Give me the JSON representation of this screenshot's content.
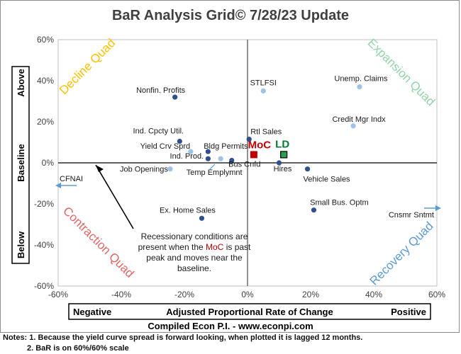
{
  "chart_data": {
    "type": "scatter",
    "title": "BaR Analysis Grid© 7/28/23 Update",
    "xlim": [
      -0.6,
      0.6
    ],
    "ylim": [
      -0.6,
      0.6
    ],
    "x_ticks": [
      "-60%",
      "-40%",
      "-20%",
      "0%",
      "20%",
      "40%",
      "60%"
    ],
    "y_ticks": [
      "60%",
      "40%",
      "20%",
      "0%",
      "-20%",
      "-40%",
      "-60%"
    ],
    "x_axis_box": {
      "left": "Negative",
      "center": "Adjusted Proportional Rate of Change",
      "right": "Positive"
    },
    "y_axis_box": {
      "top": "Above",
      "middle": "Baseline",
      "bottom": "Below"
    },
    "quadrants": {
      "top_left": "Decline Quad",
      "top_right": "Expansion Quad",
      "bottom_left": "Contraction Quad",
      "bottom_right": "Recovery Quad"
    },
    "points": [
      {
        "label": "STLFSI",
        "x": 0.05,
        "y": 0.35
      },
      {
        "label": "Unemp. Claims",
        "x": 0.355,
        "y": 0.37
      },
      {
        "label": "Nonfin. Profits",
        "x": -0.23,
        "y": 0.32
      },
      {
        "label": "Credit Mgr Indx",
        "x": 0.335,
        "y": 0.18
      },
      {
        "label": "Rtl Sales",
        "x": 0.005,
        "y": 0.115
      },
      {
        "label": "Ind. Cpcty Util.",
        "x": -0.215,
        "y": 0.105
      },
      {
        "label": "Yield Crv Sprd",
        "x": -0.18,
        "y": 0.055
      },
      {
        "label": "Bldg Permits",
        "x": -0.125,
        "y": 0.055
      },
      {
        "label": "Ind. Prod.",
        "x": -0.125,
        "y": 0.02
      },
      {
        "label": "Temp Emplymnt",
        "x": -0.085,
        "y": 0.02
      },
      {
        "label": "Bus Cnfd",
        "x": -0.05,
        "y": 0.012
      },
      {
        "label": "Hires",
        "x": 0.1,
        "y": 0.0
      },
      {
        "label": "Job Openings",
        "x": -0.245,
        "y": -0.03
      },
      {
        "label": "Vehicle Sales",
        "x": 0.19,
        "y": -0.03
      },
      {
        "label": "Small Bus. Optm",
        "x": 0.21,
        "y": -0.23
      },
      {
        "label": "Ex. Home Sales",
        "x": -0.145,
        "y": -0.27
      }
    ],
    "off_scale": [
      {
        "label": "CFNAI",
        "direction": "left"
      },
      {
        "label": "Cnsmr Sntmt",
        "direction": "right"
      }
    ],
    "composites": [
      {
        "label": "MoC",
        "x": 0.02,
        "y": 0.04
      },
      {
        "label": "LD",
        "x": 0.115,
        "y": 0.04
      }
    ],
    "annotation": {
      "before": "Recessionary conditions are present when the ",
      "highlight": "MoC",
      "after": " is past peak and moves near the baseline."
    },
    "source": "Compiled Econ P.I. - www.econpi.com"
  },
  "notes": [
    "Notes: 1. Because the yield curve spread is forward looking, when plotted it is lagged 12 months.",
    "2. BaR is on 60%/60% scale"
  ],
  "colors": {
    "decline": "#ffc000",
    "expansion": "#92d3a8",
    "contraction": "#e06666",
    "recovery": "#5b9bd5",
    "moc": "#c00000",
    "ld": "#007a33",
    "annotation_highlight": "#c00000",
    "point_dark": "#2f4f8f",
    "point_light": "#9dc3e6"
  }
}
